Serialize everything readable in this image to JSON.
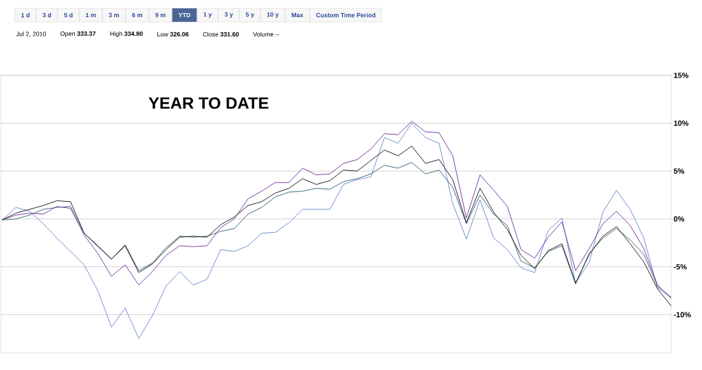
{
  "chart_data": {
    "type": "line",
    "title": "YEAR TO DATE",
    "annotations": [
      "1 d",
      "3 d",
      "5 d",
      "1 m",
      "3 m",
      "6 m",
      "9 m",
      "YTD",
      "1 y",
      "3 y",
      "5 y",
      "10 y",
      "Max",
      "Custom Time Period",
      "Jul 2, 2010",
      "Open **333.37**",
      "High **334.80**",
      "Low **326.06**",
      "Close **331.60**",
      "Volume --"
    ],
    "categories": [
      null,
      null,
      null,
      null,
      null,
      null,
      null,
      null,
      null,
      null,
      null,
      null,
      null,
      null,
      null,
      null,
      null,
      null,
      null,
      null,
      null,
      null,
      null,
      null,
      null,
      null,
      null,
      null,
      null,
      null,
      null,
      null,
      null,
      null,
      null,
      null,
      null,
      null,
      null,
      null,
      null,
      null,
      null,
      null,
      null,
      null,
      null,
      null,
      null,
      null
    ],
    "ylim": [
      -14,
      15
    ],
    "yticks": [
      {
        "value": -10,
        "label": "-10%"
      },
      {
        "value": -5,
        "label": "-5%"
      },
      {
        "value": 0,
        "label": "0%"
      },
      {
        "value": 5,
        "label": "5%"
      },
      {
        "value": 10,
        "label": "10%"
      },
      {
        "value": 15,
        "label": "15%"
      }
    ],
    "grid": "y",
    "marker": "none",
    "line_style": "solid",
    "series": [
      {
        "color": "#6f8fcf",
        "values": [
          -0.1,
          1.2,
          0.8,
          -0.5,
          -2.0,
          -3.4,
          -4.8,
          -7.5,
          -11.3,
          -9.3,
          -12.5,
          -10.1,
          -7.0,
          -5.5,
          -6.9,
          -6.3,
          -3.2,
          -3.4,
          -2.8,
          -1.5,
          -1.4,
          -0.4,
          1.0,
          1.0,
          1.0,
          3.6,
          4.1,
          4.4,
          8.5,
          7.9,
          10.0,
          8.5,
          7.9,
          1.6,
          -2.1,
          2.0,
          -2.0,
          -3.2,
          -5.1,
          -5.6,
          -1.2,
          0.1,
          -6.7,
          -4.5,
          0.7,
          3.0,
          1.0,
          -2.0,
          -7.2,
          -8.2
        ]
      },
      {
        "color": "#3d6b78",
        "values": [
          -0.1,
          0.0,
          0.4,
          1.0,
          1.2,
          1.3,
          -1.5,
          -2.9,
          -4.2,
          -2.7,
          -5.4,
          -4.6,
          -3.0,
          -1.8,
          -1.9,
          -1.8,
          -1.3,
          -1.0,
          0.5,
          1.2,
          2.3,
          2.8,
          2.9,
          3.2,
          3.1,
          3.9,
          4.2,
          4.7,
          5.6,
          5.3,
          5.9,
          4.7,
          5.1,
          3.3,
          -0.5,
          2.5,
          0.5,
          -0.7,
          -4.4,
          -5.1,
          -3.4,
          -2.8,
          -6.8,
          -3.6,
          -2.0,
          -1.0,
          -2.2,
          -3.7,
          -7.0,
          -8.2
        ]
      },
      {
        "color": "#7b3fa6",
        "values": [
          -0.1,
          0.4,
          0.6,
          0.5,
          1.3,
          1.1,
          -1.7,
          -3.6,
          -6.0,
          -4.8,
          -6.9,
          -5.5,
          -3.8,
          -2.8,
          -2.9,
          -2.8,
          -0.9,
          0.0,
          2.1,
          2.9,
          3.8,
          3.8,
          5.3,
          4.6,
          4.7,
          5.8,
          6.2,
          7.3,
          8.9,
          8.8,
          10.2,
          9.1,
          9.0,
          6.6,
          0.1,
          4.6,
          3.0,
          1.3,
          -3.2,
          -4.1,
          -1.9,
          -0.3,
          -5.4,
          -3.1,
          -0.5,
          0.8,
          -0.7,
          -3.1,
          -6.9,
          -8.3
        ]
      },
      {
        "color": "#222222",
        "values": [
          -0.1,
          0.6,
          1.0,
          1.4,
          1.9,
          1.8,
          -1.5,
          -2.8,
          -4.2,
          -2.8,
          -5.6,
          -4.7,
          -3.2,
          -1.9,
          -1.8,
          -1.9,
          -0.6,
          0.2,
          1.4,
          1.8,
          2.7,
          3.2,
          4.2,
          3.6,
          4.0,
          5.1,
          5.0,
          6.1,
          7.2,
          6.6,
          7.6,
          5.8,
          6.2,
          4.1,
          -0.4,
          3.2,
          0.7,
          -1.1,
          -3.8,
          -5.2,
          -3.3,
          -2.6,
          -6.7,
          -3.7,
          -1.8,
          -0.8,
          -2.6,
          -4.5,
          -7.3,
          -9.1
        ]
      }
    ]
  }
}
